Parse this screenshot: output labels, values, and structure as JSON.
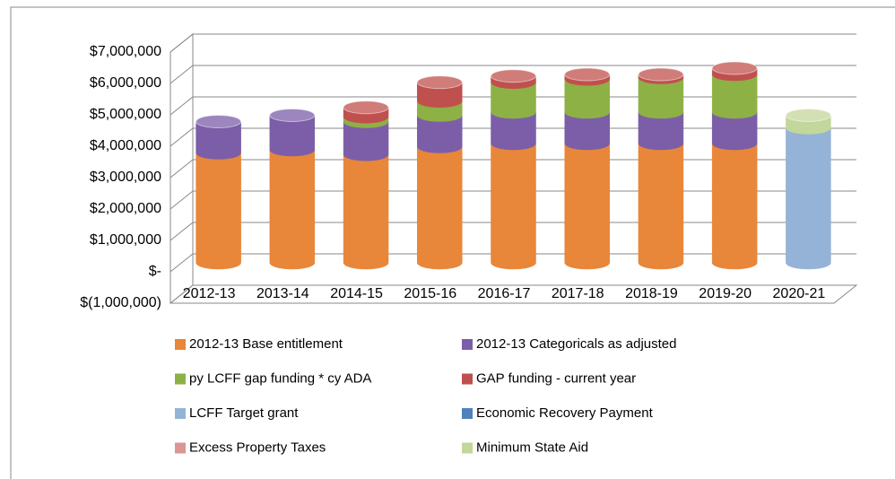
{
  "chart_data": {
    "type": "bar3d_stacked",
    "categories": [
      "2012-13",
      "2013-14",
      "2014-15",
      "2015-16",
      "2016-17",
      "2017-18",
      "2018-19",
      "2019-20",
      "2020-21"
    ],
    "series": [
      {
        "name": "2012-13 Base entitlement",
        "color": "#e8863a",
        "values": [
          3500000,
          3600000,
          3450000,
          3700000,
          3800000,
          3800000,
          3800000,
          3800000,
          0
        ]
      },
      {
        "name": "2012-13 Categoricals as adjusted",
        "color": "#7b5ea7",
        "values": [
          1000000,
          1100000,
          1050000,
          1000000,
          1000000,
          1000000,
          1000000,
          1000000,
          0
        ]
      },
      {
        "name": "py LCFF gap funding * cy ADA",
        "color": "#8db145",
        "values": [
          0,
          0,
          150000,
          450000,
          950000,
          1050000,
          1100000,
          1200000,
          0
        ]
      },
      {
        "name": "GAP funding - current year",
        "color": "#c0504d",
        "values": [
          0,
          0,
          300000,
          600000,
          200000,
          150000,
          100000,
          200000,
          0
        ]
      },
      {
        "name": "LCFF Target grant",
        "color": "#95b3d7",
        "values": [
          0,
          0,
          0,
          0,
          0,
          0,
          0,
          0,
          4300000
        ]
      },
      {
        "name": "Economic Recovery Payment",
        "color": "#4f81bd",
        "values": [
          0,
          0,
          0,
          0,
          0,
          0,
          0,
          0,
          0
        ]
      },
      {
        "name": "Excess Property Taxes",
        "color": "#d99694",
        "values": [
          0,
          0,
          0,
          0,
          0,
          0,
          0,
          0,
          0
        ]
      },
      {
        "name": "Minimum State Aid",
        "color": "#c3d69b",
        "values": [
          0,
          0,
          0,
          0,
          0,
          0,
          0,
          0,
          400000
        ]
      }
    ],
    "ylim": [
      -1000000,
      7000000
    ],
    "yticks": [
      {
        "value": -1000000,
        "label": "$(1,000,000)"
      },
      {
        "value": 0,
        "label": "$-"
      },
      {
        "value": 1000000,
        "label": "$1,000,000"
      },
      {
        "value": 2000000,
        "label": "$2,000,000"
      },
      {
        "value": 3000000,
        "label": "$3,000,000"
      },
      {
        "value": 4000000,
        "label": "$4,000,000"
      },
      {
        "value": 5000000,
        "label": "$5,000,000"
      },
      {
        "value": 6000000,
        "label": "$6,000,000"
      },
      {
        "value": 7000000,
        "label": "$7,000,000"
      }
    ],
    "grid": true
  }
}
